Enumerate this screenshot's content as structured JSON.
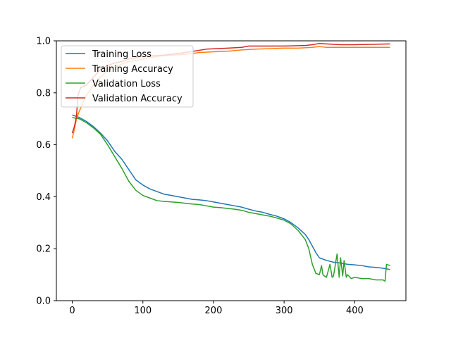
{
  "chart_data": {
    "type": "line",
    "title": "",
    "xlabel": "",
    "ylabel": "",
    "xlim": [
      -22.5,
      472.5
    ],
    "ylim": [
      0.0,
      1.0
    ],
    "xticks": [
      0,
      100,
      200,
      300,
      400
    ],
    "yticks": [
      0.0,
      0.2,
      0.4,
      0.6,
      0.8,
      1.0
    ],
    "xtick_labels": [
      "0",
      "100",
      "200",
      "300",
      "400"
    ],
    "ytick_labels": [
      "0.0",
      "0.2",
      "0.4",
      "0.6",
      "0.8",
      "1.0"
    ],
    "grid": false,
    "legend_position": "top-left",
    "series": [
      {
        "name": "Training Loss",
        "color": "#1f77b4",
        "x": [
          0,
          10,
          20,
          30,
          40,
          50,
          60,
          70,
          80,
          90,
          100,
          110,
          120,
          130,
          140,
          150,
          160,
          170,
          180,
          190,
          200,
          210,
          220,
          230,
          240,
          250,
          260,
          270,
          280,
          290,
          300,
          310,
          320,
          330,
          335,
          340,
          345,
          350,
          360,
          370,
          380,
          390,
          400,
          410,
          420,
          430,
          440,
          450
        ],
        "y": [
          0.715,
          0.705,
          0.69,
          0.67,
          0.645,
          0.615,
          0.575,
          0.545,
          0.505,
          0.465,
          0.445,
          0.43,
          0.42,
          0.41,
          0.405,
          0.4,
          0.395,
          0.39,
          0.388,
          0.385,
          0.38,
          0.375,
          0.37,
          0.365,
          0.36,
          0.352,
          0.345,
          0.34,
          0.332,
          0.325,
          0.315,
          0.3,
          0.28,
          0.255,
          0.235,
          0.21,
          0.185,
          0.165,
          0.155,
          0.148,
          0.145,
          0.14,
          0.138,
          0.135,
          0.13,
          0.128,
          0.125,
          0.12
        ]
      },
      {
        "name": "Training Accuracy",
        "color": "#ff7f0e",
        "x": [
          0,
          3,
          6,
          10,
          15,
          20,
          30,
          40,
          50,
          60,
          70,
          80,
          90,
          100,
          120,
          140,
          160,
          180,
          200,
          220,
          240,
          260,
          280,
          300,
          320,
          340,
          350,
          360,
          380,
          400,
          420,
          440,
          450
        ],
        "y": [
          0.625,
          0.66,
          0.7,
          0.73,
          0.76,
          0.79,
          0.83,
          0.86,
          0.885,
          0.9,
          0.91,
          0.92,
          0.925,
          0.93,
          0.94,
          0.945,
          0.948,
          0.955,
          0.958,
          0.96,
          0.965,
          0.968,
          0.97,
          0.972,
          0.972,
          0.975,
          0.978,
          0.975,
          0.975,
          0.975,
          0.975,
          0.975,
          0.975
        ]
      },
      {
        "name": "Validation Loss",
        "color": "#2ca02c",
        "x": [
          0,
          10,
          20,
          30,
          40,
          50,
          60,
          70,
          80,
          90,
          100,
          110,
          120,
          130,
          140,
          150,
          160,
          170,
          180,
          190,
          200,
          210,
          220,
          230,
          240,
          250,
          260,
          270,
          280,
          290,
          300,
          310,
          320,
          330,
          335,
          340,
          345,
          350,
          353,
          355,
          357,
          360,
          365,
          368,
          370,
          375,
          378,
          380,
          383,
          385,
          388,
          390,
          395,
          400,
          410,
          420,
          430,
          440,
          443,
          445,
          450
        ],
        "y": [
          0.705,
          0.7,
          0.685,
          0.665,
          0.64,
          0.6,
          0.555,
          0.51,
          0.46,
          0.425,
          0.405,
          0.395,
          0.385,
          0.382,
          0.38,
          0.378,
          0.375,
          0.372,
          0.37,
          0.365,
          0.36,
          0.358,
          0.355,
          0.352,
          0.348,
          0.34,
          0.335,
          0.33,
          0.325,
          0.318,
          0.31,
          0.295,
          0.27,
          0.235,
          0.2,
          0.14,
          0.105,
          0.1,
          0.135,
          0.1,
          0.095,
          0.09,
          0.14,
          0.09,
          0.095,
          0.18,
          0.09,
          0.165,
          0.095,
          0.155,
          0.09,
          0.1,
          0.085,
          0.09,
          0.085,
          0.085,
          0.08,
          0.08,
          0.075,
          0.14,
          0.135
        ]
      },
      {
        "name": "Validation Accuracy",
        "color": "#d62728",
        "x": [
          0,
          3,
          6,
          8,
          12,
          20,
          30,
          40,
          50,
          60,
          70,
          80,
          100,
          130,
          160,
          190,
          220,
          240,
          250,
          300,
          330,
          340,
          350,
          360,
          380,
          400,
          450
        ],
        "y": [
          0.645,
          0.67,
          0.71,
          0.79,
          0.82,
          0.83,
          0.86,
          0.89,
          0.905,
          0.915,
          0.92,
          0.93,
          0.94,
          0.945,
          0.955,
          0.968,
          0.972,
          0.975,
          0.98,
          0.98,
          0.982,
          0.985,
          0.99,
          0.988,
          0.985,
          0.985,
          0.988
        ]
      }
    ]
  }
}
